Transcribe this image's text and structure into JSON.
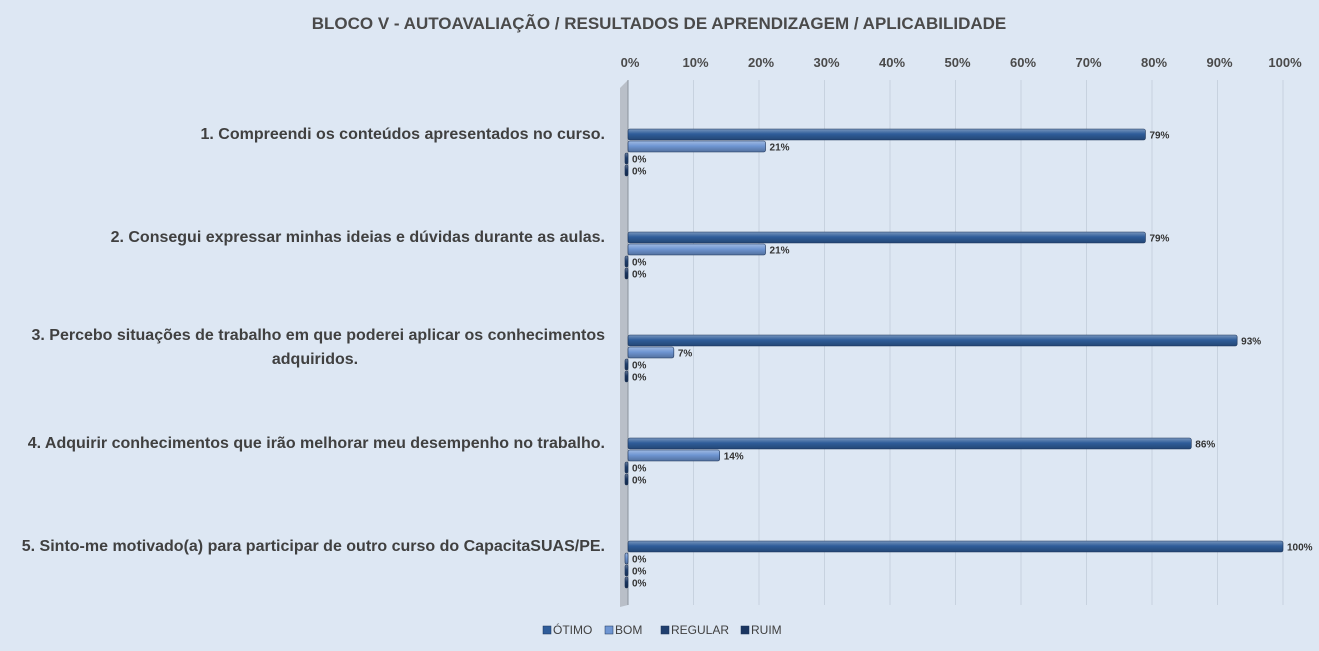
{
  "chart_data": {
    "type": "bar",
    "orientation": "horizontal",
    "title": "BLOCO V - AUTOAVALIAÇÃO / RESULTADOS DE APRENDIZAGEM / APLICABILIDADE",
    "x_axis": {
      "position": "top",
      "range": [
        0,
        100
      ],
      "ticks": [
        "0%",
        "10%",
        "20%",
        "30%",
        "40%",
        "50%",
        "60%",
        "70%",
        "80%",
        "90%",
        "100%"
      ],
      "grid": true
    },
    "categories": [
      [
        "1. Compreendi os conteúdos apresentados no curso."
      ],
      [
        "2. Consegui expressar minhas ideias e dúvidas durante as aulas."
      ],
      [
        "3. Percebo situações de trabalho em que poderei aplicar os conhecimentos",
        "adquiridos."
      ],
      [
        "4. Adquirir conhecimentos que irão melhorar meu desempenho no trabalho."
      ],
      [
        "5. Sinto-me motivado(a) para participar de outro curso do CapacitaSUAS/PE."
      ]
    ],
    "series": [
      {
        "name": "ÓTIMO",
        "color": "#2f5d9a",
        "values": [
          79,
          79,
          93,
          86,
          100
        ],
        "labels": [
          "79%",
          "79%",
          "93%",
          "86%",
          "100%"
        ]
      },
      {
        "name": "BOM",
        "color": "#6f96d3",
        "values": [
          21,
          21,
          7,
          14,
          0
        ],
        "labels": [
          "21%",
          "21%",
          "7%",
          "14%",
          "0%"
        ]
      },
      {
        "name": "REGULAR",
        "color": "#1f3f6e",
        "values": [
          0,
          0,
          0,
          0,
          0
        ],
        "labels": [
          "0%",
          "0%",
          "0%",
          "0%",
          "0%"
        ]
      },
      {
        "name": "RUIM",
        "color": "#1a3560",
        "values": [
          0,
          0,
          0,
          0,
          0
        ],
        "labels": [
          "0%",
          "0%",
          "0%",
          "0%",
          "0%"
        ]
      }
    ],
    "legend": {
      "placement": "bottom"
    }
  }
}
